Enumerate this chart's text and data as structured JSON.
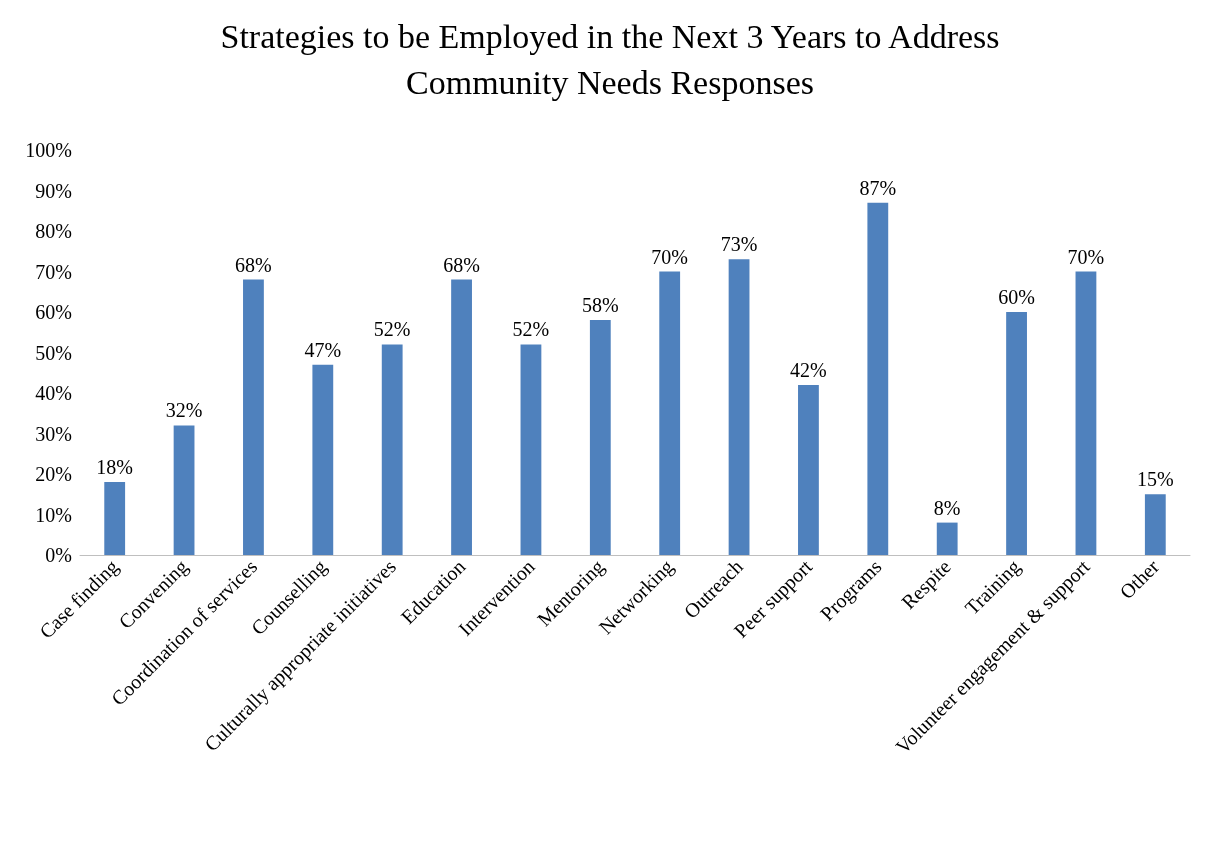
{
  "chart_data": {
    "type": "bar",
    "title": "Strategies to be Employed in the Next 3 Years to Address\nCommunity Needs Responses",
    "categories": [
      "Case finding",
      "Convening",
      "Coordination of services",
      "Counselling",
      "Culturally appropriate initiatives",
      "Education",
      "Intervention",
      "Mentoring",
      "Networking",
      "Outreach",
      "Peer support",
      "Programs",
      "Respite",
      "Training",
      "Volunteer engagement & support",
      "Other"
    ],
    "values": [
      18,
      32,
      68,
      47,
      52,
      68,
      52,
      58,
      70,
      73,
      42,
      87,
      8,
      60,
      70,
      15
    ],
    "value_labels": [
      "18%",
      "32%",
      "68%",
      "47%",
      "52%",
      "68%",
      "52%",
      "58%",
      "70%",
      "73%",
      "42%",
      "87%",
      "8%",
      "60%",
      "70%",
      "15%"
    ],
    "color": "#4f81bd",
    "ylim": [
      0,
      100
    ],
    "yticks": [
      {
        "value": 0,
        "label": "0%"
      },
      {
        "value": 10,
        "label": "10%"
      },
      {
        "value": 20,
        "label": "20%"
      },
      {
        "value": 30,
        "label": "30%"
      },
      {
        "value": 40,
        "label": "40%"
      },
      {
        "value": 50,
        "label": "50%"
      },
      {
        "value": 60,
        "label": "60%"
      },
      {
        "value": 70,
        "label": "70%"
      },
      {
        "value": 80,
        "label": "80%"
      },
      {
        "value": 90,
        "label": "90%"
      },
      {
        "value": 100,
        "label": "100%"
      }
    ],
    "grid": false
  }
}
